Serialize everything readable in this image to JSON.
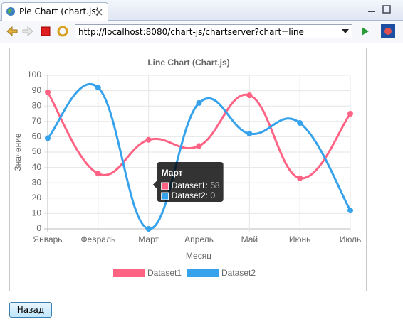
{
  "browser": {
    "tab_title": "Pie Chart (chart.js)",
    "url": "http://localhost:8080/chart-js/chartserver?chart=line"
  },
  "chart_data": {
    "type": "line",
    "title": "Line Chart (Chart.js)",
    "x_label": "Месяц",
    "y_label": "Значение",
    "categories": [
      "Январь",
      "Февраль",
      "Март",
      "Апрель",
      "Май",
      "Июнь",
      "Июль"
    ],
    "series": [
      {
        "name": "Dataset1",
        "color": "#ff6384",
        "values": [
          89,
          36,
          58,
          54,
          87,
          33,
          75
        ]
      },
      {
        "name": "Dataset2",
        "color": "#36a2eb",
        "values": [
          59,
          92,
          0,
          82,
          62,
          69,
          12
        ]
      }
    ],
    "ylim": [
      0,
      100
    ],
    "yticks": [
      0,
      10,
      20,
      30,
      40,
      50,
      60,
      70,
      80,
      90,
      100
    ],
    "grid": true,
    "legend": "bottom",
    "tooltip": {
      "title": "Март",
      "items": [
        "Dataset1: 58",
        "Dataset2: 0"
      ]
    }
  },
  "button": {
    "label": "Назад"
  }
}
